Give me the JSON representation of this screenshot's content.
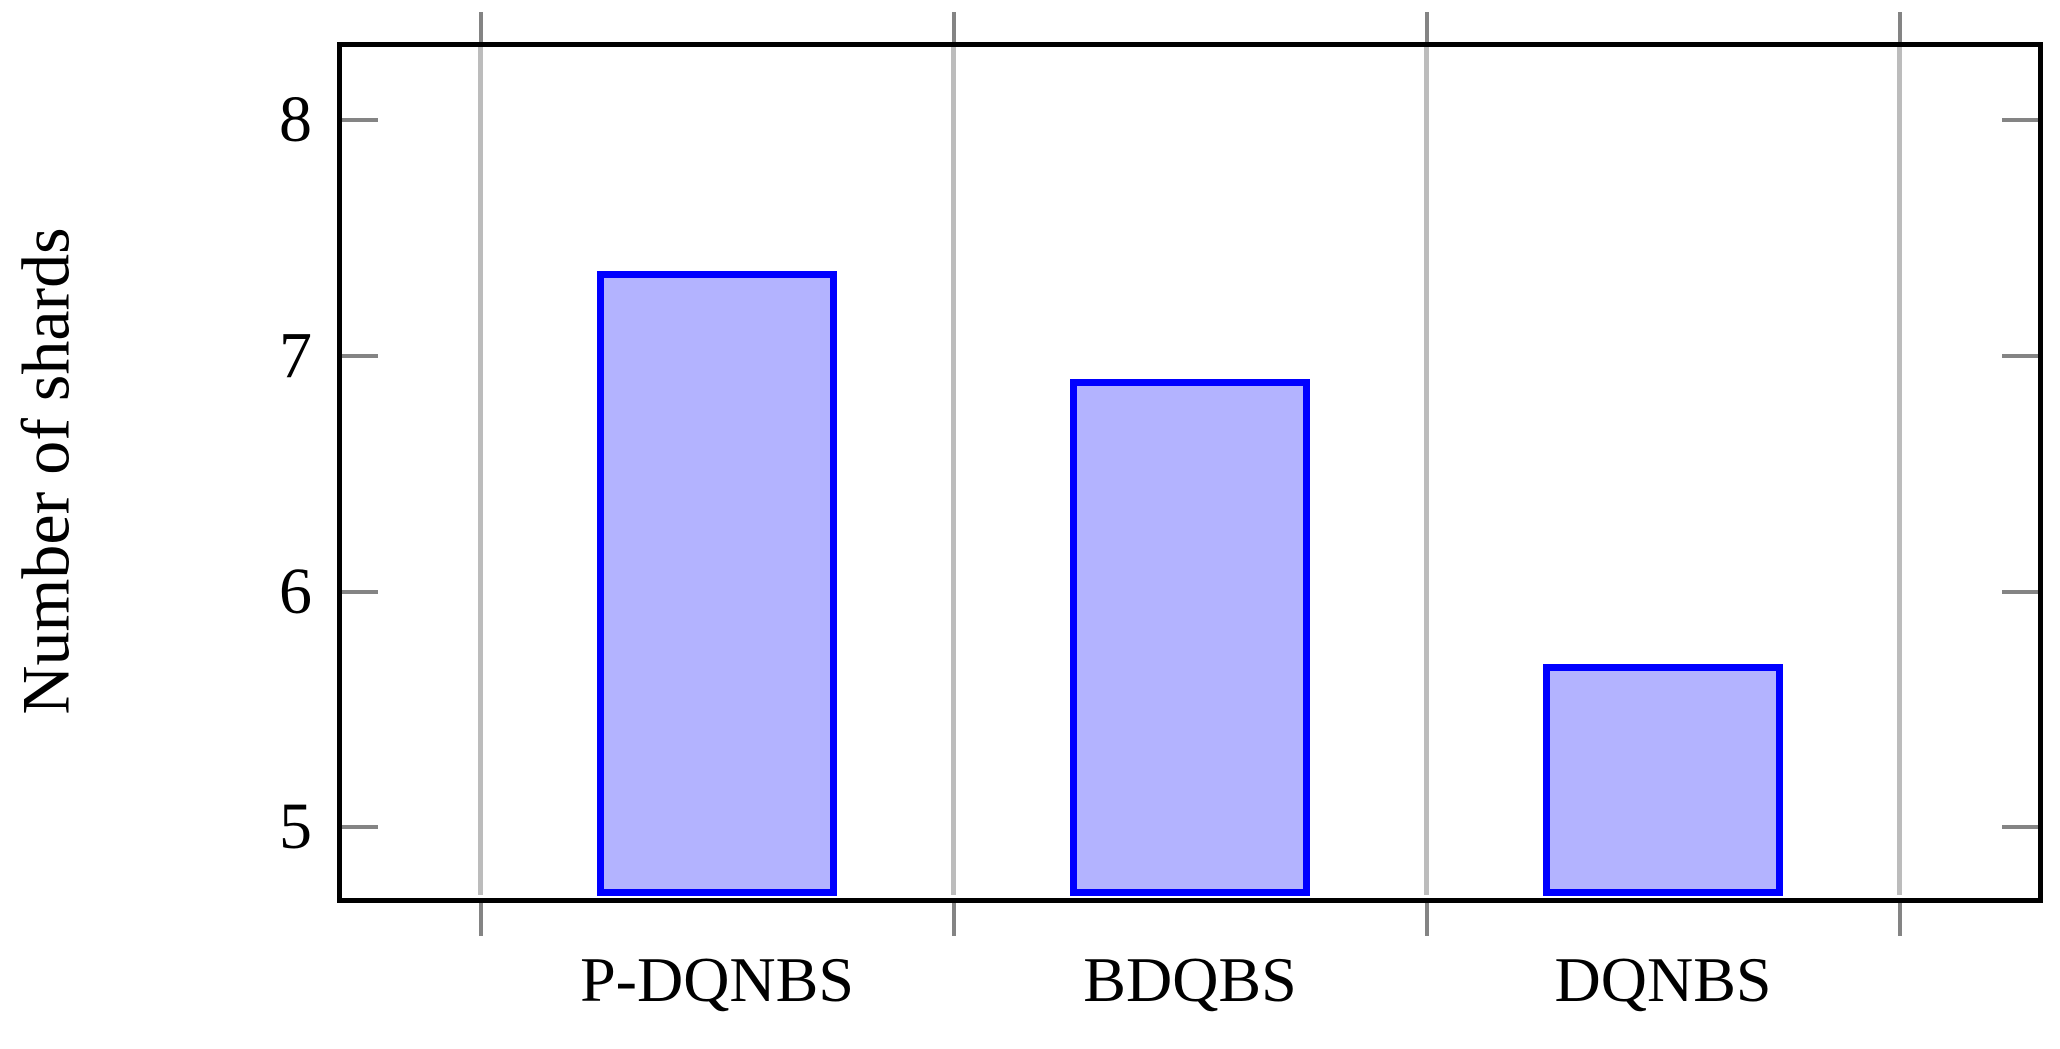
{
  "chart_data": {
    "type": "bar",
    "title": "",
    "xlabel": "",
    "ylabel": "Number of shards",
    "categories": [
      "P-DQNBS",
      "BDQBS",
      "DQNBS"
    ],
    "values": [
      7.35,
      6.89,
      5.68
    ],
    "ylim": [
      4.7,
      8.32
    ],
    "yticks": [
      5,
      6,
      7,
      8
    ],
    "grid": "vertical gridlines at category boundaries",
    "legend_position": "none",
    "colors": {
      "bar_fill": "#b3b3ff",
      "bar_border": "#0000ff",
      "gridline": "#bcbcbc",
      "tick": "#848484",
      "frame": "#000000",
      "background": "#ffffff",
      "text": "#000000"
    }
  }
}
